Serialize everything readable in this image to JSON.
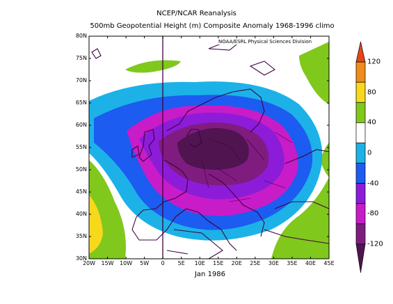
{
  "header": {
    "line1": "NCEP/NCAR Reanalysis",
    "line2": "500mb Geopotential Height (m) Composite Anomaly 1968-1996 climo"
  },
  "map": {
    "credit": "NOAA/ESRL Physical Sciences Division",
    "x_axis_label": "Jan 1986",
    "lat_labels": [
      "80N",
      "75N",
      "70N",
      "65N",
      "60N",
      "55N",
      "50N",
      "45N",
      "40N",
      "35N",
      "30N"
    ],
    "lon_labels": [
      "20W",
      "15W",
      "10W",
      "5W",
      "0",
      "5E",
      "10E",
      "15E",
      "20E",
      "25E",
      "30E",
      "35E",
      "40E",
      "45E"
    ],
    "lat_range": [
      30,
      80
    ],
    "lon_range": [
      -20,
      45
    ]
  },
  "colorbar": {
    "labels": [
      "120",
      "80",
      "40",
      "0",
      "-40",
      "-80",
      "-120"
    ],
    "colors": [
      "#e4461b",
      "#f08c1c",
      "#f7d81c",
      "#80c81c",
      "#ffffff",
      "#1cb2e8",
      "#1c5cf0",
      "#8c1cd8",
      "#c81cc8",
      "#801c80",
      "#501450"
    ]
  }
}
